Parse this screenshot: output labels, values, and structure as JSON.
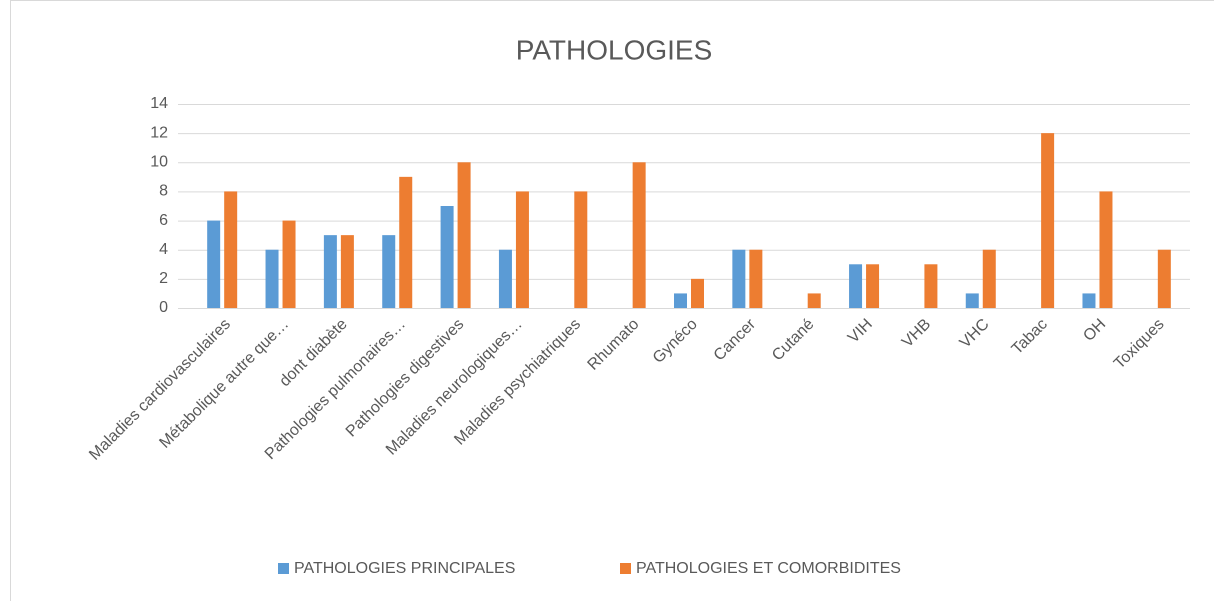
{
  "chart_data": {
    "type": "bar",
    "title": "PATHOLOGIES",
    "categories": [
      "Maladies cardiovasculaires",
      "Métabolique autre que…",
      "dont diabète",
      "Pathologies pulmonaires…",
      "Pathologies digestives",
      "Maladies neurologiques…",
      "Maladies psychiatriques",
      "Rhumato",
      "Gynéco",
      "Cancer",
      "Cutané",
      "VIH",
      "VHB",
      "VHC",
      "Tabac",
      "OH",
      "Toxiques"
    ],
    "series": [
      {
        "name": "PATHOLOGIES PRINCIPALES",
        "color": "#5b9bd5",
        "values": [
          6,
          4,
          5,
          5,
          7,
          4,
          0,
          0,
          1,
          4,
          0,
          3,
          0,
          1,
          0,
          1,
          0
        ]
      },
      {
        "name": "PATHOLOGIES ET COMORBIDITES",
        "color": "#ed7d31",
        "values": [
          8,
          6,
          5,
          9,
          10,
          8,
          8,
          10,
          2,
          4,
          1,
          3,
          3,
          4,
          12,
          8,
          4
        ]
      }
    ],
    "ylim": [
      0,
      14
    ],
    "yticks": [
      0,
      2,
      4,
      6,
      8,
      10,
      12,
      14
    ],
    "grid": true,
    "legend": "bottom"
  }
}
